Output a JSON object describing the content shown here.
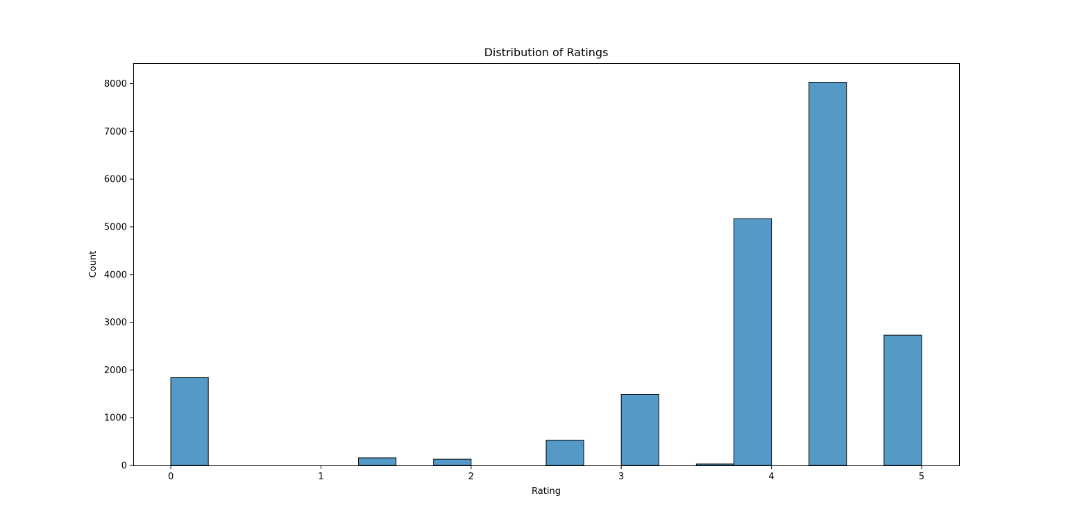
{
  "chart_data": {
    "type": "bar",
    "title": "Distribution of Ratings",
    "xlabel": "Rating",
    "ylabel": "Count",
    "xlim": [
      -0.25,
      5.25
    ],
    "ylim": [
      0,
      8430
    ],
    "xticks": [
      0,
      1,
      2,
      3,
      4,
      5
    ],
    "yticks": [
      0,
      1000,
      2000,
      3000,
      4000,
      5000,
      6000,
      7000,
      8000
    ],
    "bin_width": 0.25,
    "bins": [
      {
        "x0": 0.0,
        "x1": 0.25,
        "count": 1840
      },
      {
        "x0": 0.25,
        "x1": 0.5,
        "count": 0
      },
      {
        "x0": 0.5,
        "x1": 0.75,
        "count": 0
      },
      {
        "x0": 0.75,
        "x1": 1.0,
        "count": 0
      },
      {
        "x0": 1.0,
        "x1": 1.25,
        "count": 0
      },
      {
        "x0": 1.25,
        "x1": 1.5,
        "count": 160
      },
      {
        "x0": 1.5,
        "x1": 1.75,
        "count": 0
      },
      {
        "x0": 1.75,
        "x1": 2.0,
        "count": 130
      },
      {
        "x0": 2.0,
        "x1": 2.25,
        "count": 0
      },
      {
        "x0": 2.25,
        "x1": 2.5,
        "count": 0
      },
      {
        "x0": 2.5,
        "x1": 2.75,
        "count": 530
      },
      {
        "x0": 2.75,
        "x1": 3.0,
        "count": 0
      },
      {
        "x0": 3.0,
        "x1": 3.25,
        "count": 1490
      },
      {
        "x0": 3.25,
        "x1": 3.5,
        "count": 0
      },
      {
        "x0": 3.5,
        "x1": 3.75,
        "count": 30
      },
      {
        "x0": 3.75,
        "x1": 4.0,
        "count": 5170
      },
      {
        "x0": 4.0,
        "x1": 4.25,
        "count": 0
      },
      {
        "x0": 4.25,
        "x1": 4.5,
        "count": 8030
      },
      {
        "x0": 4.5,
        "x1": 4.75,
        "count": 0
      },
      {
        "x0": 4.75,
        "x1": 5.0,
        "count": 2730
      }
    ],
    "bar_color": "#5599c7",
    "edge_color": "#000000",
    "grid": false,
    "legend": "none"
  }
}
